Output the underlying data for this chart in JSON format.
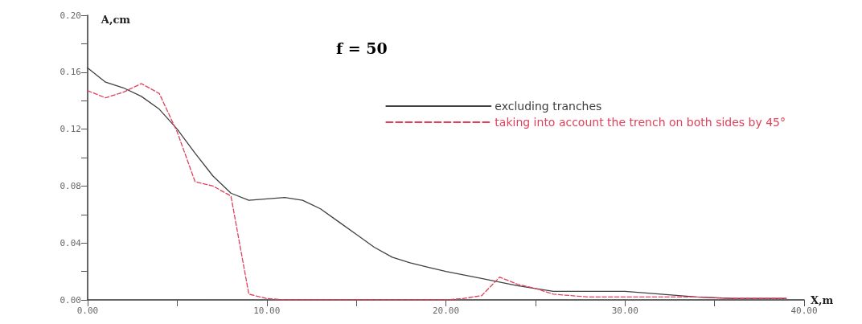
{
  "chart_data": {
    "type": "line",
    "xlabel": "X,m",
    "ylabel": "A,cm",
    "annotations": [
      "f = 50"
    ],
    "xlim": [
      0,
      40
    ],
    "ylim": [
      0,
      0.2
    ],
    "xticks": [
      {
        "value": 0,
        "label": "0.00"
      },
      {
        "value": 5,
        "label": null
      },
      {
        "value": 10,
        "label": "10.00"
      },
      {
        "value": 15,
        "label": null
      },
      {
        "value": 20,
        "label": "20.00"
      },
      {
        "value": 25,
        "label": null
      },
      {
        "value": 30,
        "label": "30.00"
      },
      {
        "value": 35,
        "label": null
      },
      {
        "value": 40,
        "label": "40.00"
      }
    ],
    "yticks": [
      {
        "value": 0,
        "label": "0.00"
      },
      {
        "value": 0.02,
        "label": null
      },
      {
        "value": 0.04,
        "label": "0.04"
      },
      {
        "value": 0.06,
        "label": null
      },
      {
        "value": 0.08,
        "label": "0.08"
      },
      {
        "value": 0.1,
        "label": null
      },
      {
        "value": 0.12,
        "label": "0.12"
      },
      {
        "value": 0.14,
        "label": null
      },
      {
        "value": 0.16,
        "label": "0.16"
      },
      {
        "value": 0.18,
        "label": null
      },
      {
        "value": 0.2,
        "label": "0.20"
      }
    ],
    "grid": false,
    "legend": "top right",
    "marker": "none",
    "series": [
      {
        "name": "excluding tranches",
        "color": "#404040",
        "line_style": "solid",
        "x": [
          0,
          1,
          2,
          3,
          4,
          5,
          6,
          7,
          8,
          9,
          10,
          11,
          12,
          13,
          14,
          15,
          16,
          17,
          18,
          19,
          20,
          22,
          24,
          26,
          28,
          30,
          32,
          34,
          36,
          38,
          39
        ],
        "values": [
          0.163,
          0.153,
          0.149,
          0.143,
          0.134,
          0.12,
          0.103,
          0.087,
          0.075,
          0.07,
          0.071,
          0.072,
          0.07,
          0.064,
          0.055,
          0.046,
          0.037,
          0.03,
          0.026,
          0.023,
          0.02,
          0.015,
          0.01,
          0.006,
          0.006,
          0.006,
          0.004,
          0.002,
          0.001,
          0.001,
          0.001
        ]
      },
      {
        "name": "taking into account the trench on both sides by 45°",
        "color": "#e0405a",
        "line_style": "dashed",
        "x": [
          0,
          1,
          2,
          3,
          4,
          5,
          6,
          7,
          8,
          9,
          10,
          11,
          12,
          14,
          16,
          18,
          20,
          21,
          22,
          23,
          24,
          25,
          26,
          28,
          30,
          32,
          34,
          36,
          38,
          39
        ],
        "values": [
          0.147,
          0.142,
          0.146,
          0.152,
          0.145,
          0.118,
          0.083,
          0.08,
          0.073,
          0.004,
          0.001,
          0,
          0,
          0,
          0,
          0,
          0,
          0.001,
          0.003,
          0.016,
          0.011,
          0.008,
          0.004,
          0.002,
          0.002,
          0.002,
          0.002,
          0.001,
          0.001,
          0.001
        ]
      }
    ]
  }
}
